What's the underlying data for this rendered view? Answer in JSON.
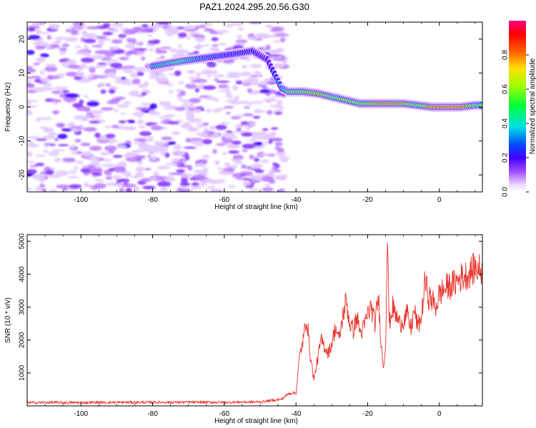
{
  "title": "PAZ1.2024.295.20.56.G30",
  "chart_data": [
    {
      "type": "heatmap",
      "xlabel": "Height of straight line (km)",
      "ylabel": "Frequency (Hz)",
      "xlim": [
        -115,
        12
      ],
      "ylim": [
        -25,
        25
      ],
      "xticks": [
        -100,
        -80,
        -60,
        -40,
        -20,
        0
      ],
      "yticks": [
        -20,
        -10,
        0,
        10,
        20
      ],
      "colorbar": {
        "label": "Normalized spectral amplitude",
        "range": [
          0.0,
          1.0
        ],
        "ticks": [
          0.0,
          0.2,
          0.4,
          0.6,
          0.8
        ]
      },
      "ridge": {
        "description": "dominant frequency ridge",
        "x": [
          -80,
          -72,
          -65,
          -58,
          -52,
          -48,
          -44,
          -42,
          -38,
          -34,
          -30,
          -26,
          -22,
          -18,
          -14,
          -10,
          -6,
          -2,
          2,
          6,
          10,
          12
        ],
        "frequency": [
          12,
          13.5,
          14.5,
          15.5,
          16.5,
          14,
          5.5,
          4.5,
          4.5,
          4,
          3,
          2,
          1,
          1,
          1,
          1,
          0.5,
          0,
          0,
          0,
          0.5,
          0.5
        ],
        "amplitude": [
          0.45,
          0.55,
          0.35,
          0.3,
          0.3,
          0.2,
          0.4,
          0.6,
          0.65,
          0.8,
          0.6,
          0.7,
          0.65,
          0.8,
          0.85,
          0.8,
          0.6,
          0.9,
          0.95,
          0.95,
          0.6,
          0.55
        ]
      }
    },
    {
      "type": "line",
      "xlabel": "Height of straight line (km)",
      "ylabel": "SNR (10 * v/v)",
      "xlim": [
        -115,
        12
      ],
      "ylim": [
        0,
        5200
      ],
      "xticks": [
        -100,
        -80,
        -60,
        -40,
        -20,
        0
      ],
      "yticks": [
        1000,
        2000,
        3000,
        4000,
        5000
      ],
      "series": [
        {
          "color": "#e8322a",
          "x": [
            -115,
            -100,
            -80,
            -60,
            -50,
            -44,
            -42,
            -40,
            -39,
            -38,
            -37,
            -36,
            -35,
            -34,
            -33,
            -32,
            -31,
            -30,
            -29,
            -28,
            -27,
            -26,
            -25,
            -24,
            -23,
            -22,
            -21,
            -20,
            -19,
            -18,
            -17,
            -16,
            -15.5,
            -15,
            -14.5,
            -14,
            -13,
            -12,
            -11,
            -10,
            -9,
            -8,
            -7,
            -6,
            -5,
            -4,
            -3,
            -2,
            -1,
            0,
            2,
            4,
            6,
            8,
            10,
            12
          ],
          "y": [
            100,
            100,
            110,
            110,
            120,
            200,
            380,
            400,
            1500,
            2000,
            2700,
            1500,
            800,
            1400,
            2000,
            1800,
            1600,
            1900,
            2400,
            2000,
            2700,
            3200,
            2500,
            2300,
            2700,
            2200,
            2400,
            2800,
            3000,
            2500,
            3300,
            1500,
            1200,
            2000,
            5200,
            2500,
            3000,
            2700,
            2500,
            2600,
            2800,
            2300,
            2900,
            2400,
            2700,
            3800,
            3300,
            3200,
            3000,
            3400,
            3600,
            3700,
            3900,
            4000,
            4200,
            4100
          ]
        }
      ]
    }
  ]
}
